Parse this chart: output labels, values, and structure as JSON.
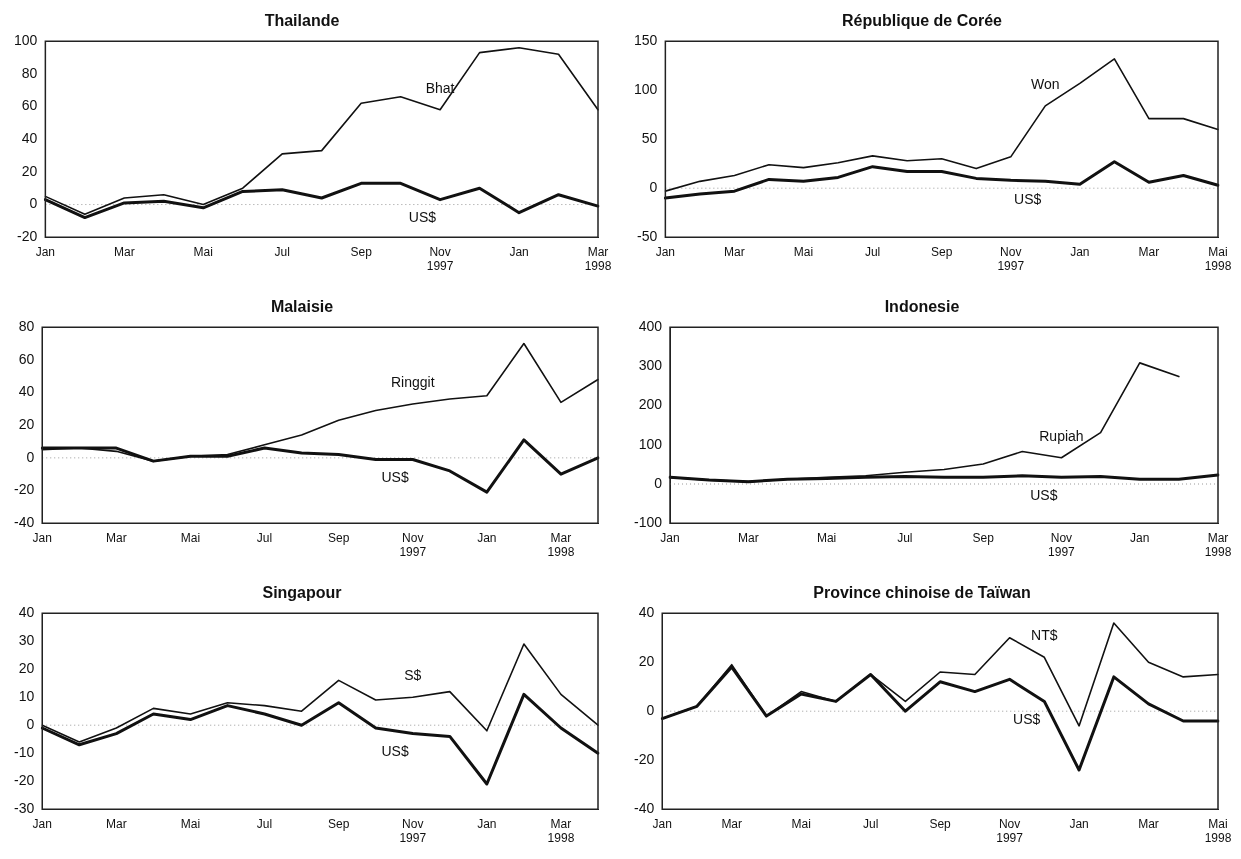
{
  "chart_data": [
    {
      "type": "line",
      "title": "Thailande",
      "categories": [
        "Jan",
        null,
        "Mar",
        null,
        "Mai",
        null,
        "Jul",
        null,
        "Sep",
        null,
        "Nov\n1997",
        null,
        "Jan",
        null,
        "Mar\n1998"
      ],
      "series": [
        {
          "name": "Bhat",
          "color": "#111111",
          "values": [
            5,
            -6,
            4,
            6,
            0,
            10,
            31,
            33,
            62,
            66,
            58,
            93,
            96,
            92,
            58
          ]
        },
        {
          "name": "US$",
          "color": "#111111",
          "values": [
            3,
            -8,
            1,
            2,
            -2,
            8,
            9,
            4,
            13,
            13,
            3,
            10,
            -5,
            6,
            -1
          ]
        }
      ],
      "ylim": [
        -20,
        100
      ],
      "yticks": [
        -20,
        0,
        20,
        40,
        60,
        80,
        100
      ],
      "ref_lines": [
        {
          "axis": "y",
          "value": 0,
          "color": "#999999",
          "line_style": "dotted"
        }
      ]
    },
    {
      "type": "line",
      "title": "République de Corée",
      "categories": [
        "Jan",
        null,
        "Mar",
        null,
        "Mai",
        null,
        "Jul",
        null,
        "Sep",
        null,
        "Nov\n1997",
        null,
        "Jan",
        null,
        "Mar",
        null,
        "Mai\n1998"
      ],
      "series": [
        {
          "name": "Won",
          "color": "#111111",
          "values": [
            -3,
            7,
            13,
            24,
            21,
            26,
            33,
            28,
            30,
            20,
            32,
            84,
            107,
            132,
            71,
            71,
            60
          ]
        },
        {
          "name": "US$",
          "color": "#111111",
          "values": [
            -10,
            -6,
            -3,
            9,
            7,
            11,
            22,
            17,
            17,
            10,
            8,
            7,
            4,
            27,
            6,
            13,
            3
          ]
        }
      ],
      "ylim": [
        -50,
        150
      ],
      "yticks": [
        -50,
        0,
        50,
        100,
        150
      ],
      "ref_lines": [
        {
          "axis": "y",
          "value": 0,
          "color": "#999999",
          "line_style": "dotted"
        }
      ]
    },
    {
      "type": "line",
      "title": "Malaisie",
      "categories": [
        "Jan",
        null,
        "Mar",
        null,
        "Mai",
        null,
        "Jul",
        null,
        "Sep",
        null,
        "Nov\n1997",
        null,
        "Jan",
        null,
        "Mar\n1998",
        null
      ],
      "series": [
        {
          "name": "Ringgit",
          "color": "#111111",
          "values": [
            5,
            6,
            4,
            -2,
            1,
            2,
            8,
            14,
            23,
            29,
            33,
            36,
            38,
            70,
            34,
            48
          ]
        },
        {
          "name": "US$",
          "color": "#111111",
          "values": [
            6,
            6,
            6,
            -2,
            1,
            1,
            6,
            3,
            2,
            -1,
            -1,
            -8,
            -21,
            11,
            -10,
            0
          ]
        }
      ],
      "ylim": [
        -40,
        80
      ],
      "yticks": [
        -40,
        -20,
        0,
        20,
        40,
        60,
        80
      ],
      "ref_lines": [
        {
          "axis": "y",
          "value": 0,
          "color": "#999999",
          "line_style": "dotted"
        }
      ]
    },
    {
      "type": "line",
      "title": "Indonesie",
      "categories": [
        "Jan",
        null,
        "Mar",
        null,
        "Mai",
        null,
        "Jul",
        null,
        "Sep",
        null,
        "Nov\n1997",
        null,
        "Jan",
        null,
        "Mar\n1998"
      ],
      "series": [
        {
          "name": "Rupiah",
          "color": "#111111",
          "values": [
            17,
            10,
            6,
            12,
            17,
            21,
            30,
            37,
            51,
            83,
            67,
            131,
            309,
            274,
            null
          ]
        },
        {
          "name": "US$",
          "color": "#111111",
          "values": [
            17,
            10,
            6,
            12,
            14,
            17,
            19,
            17,
            17,
            21,
            17,
            19,
            12,
            12,
            23
          ]
        }
      ],
      "ylim": [
        -100,
        400
      ],
      "yticks": [
        -100,
        0,
        100,
        200,
        300,
        400
      ],
      "ref_lines": [
        {
          "axis": "y",
          "value": 0,
          "color": "#999999",
          "line_style": "dotted"
        }
      ]
    },
    {
      "type": "line",
      "title": "Singapour",
      "categories": [
        "Jan",
        null,
        "Mar",
        null,
        "Mai",
        null,
        "Jul",
        null,
        "Sep",
        null,
        "Nov\n1997",
        null,
        "Jan",
        null,
        "Mar\n1998",
        null
      ],
      "series": [
        {
          "name": "S$",
          "color": "#111111",
          "values": [
            0,
            -6,
            -1,
            6,
            4,
            8,
            7,
            5,
            16,
            9,
            10,
            12,
            -2,
            29,
            11,
            0
          ]
        },
        {
          "name": "US$",
          "color": "#111111",
          "values": [
            -1,
            -7,
            -3,
            4,
            2,
            7,
            4,
            0,
            8,
            -1,
            -3,
            -4,
            -21,
            11,
            -1,
            -10
          ]
        }
      ],
      "ylim": [
        -30,
        40
      ],
      "yticks": [
        -30,
        -20,
        -10,
        0,
        10,
        20,
        30,
        40
      ],
      "ref_lines": [
        {
          "axis": "y",
          "value": 0,
          "color": "#999999",
          "line_style": "dotted"
        }
      ]
    },
    {
      "type": "line",
      "title": "Province chinoise de Taïwan",
      "categories": [
        "Jan",
        null,
        "Mar",
        null,
        "Mai",
        null,
        "Jul",
        null,
        "Sep",
        null,
        "Nov\n1997",
        null,
        "Jan",
        null,
        "Mar",
        null,
        "Mai\n1998"
      ],
      "series": [
        {
          "name": "NT$",
          "color": "#111111",
          "values": [
            -3,
            2,
            19,
            -2,
            8,
            4,
            15,
            4,
            16,
            15,
            30,
            22,
            -6,
            36,
            20,
            14,
            15
          ]
        },
        {
          "name": "US$",
          "color": "#111111",
          "values": [
            -3,
            2,
            18,
            -2,
            7,
            4,
            15,
            0,
            12,
            8,
            13,
            4,
            -24,
            14,
            3,
            -4,
            -4
          ]
        }
      ],
      "ylim": [
        -40,
        40
      ],
      "yticks": [
        -40,
        -20,
        0,
        20,
        40
      ],
      "ref_lines": [
        {
          "axis": "y",
          "value": 0,
          "color": "#999999",
          "line_style": "dotted"
        }
      ]
    }
  ]
}
